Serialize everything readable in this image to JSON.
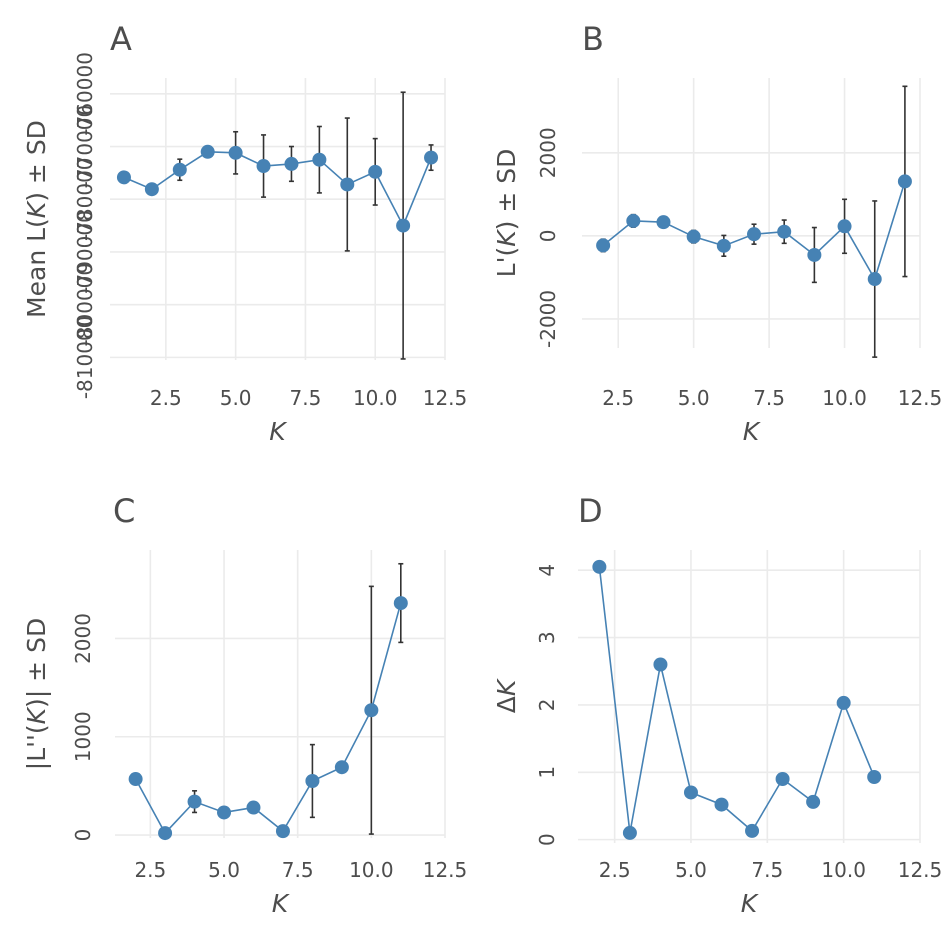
{
  "chart_data": [
    {
      "panel_tag": "A",
      "type": "line",
      "xlabel": "K",
      "ylabel": "Mean L(K) ± SD",
      "xlim": [
        0.5,
        12.5
      ],
      "ylim": [
        -810500,
        -757000
      ],
      "x_ticks": [
        2.5,
        5.0,
        7.5,
        10.0,
        12.5
      ],
      "y_ticks": [
        -810000,
        -800000,
        -790000,
        -780000,
        -770000,
        -760000
      ],
      "x_tick_labels": [
        "2.5",
        "5.0",
        "7.5",
        "10.0",
        "12.5"
      ],
      "y_tick_labels": [
        "-810000",
        "-800000",
        "-790000",
        "-780000",
        "-770000",
        "-760000"
      ],
      "grid": true,
      "x": [
        1,
        2,
        3,
        4,
        5,
        6,
        7,
        8,
        9,
        10,
        11,
        12
      ],
      "y": [
        -775850,
        -778100,
        -774400,
        -771000,
        -771200,
        -773700,
        -773300,
        -772500,
        -777200,
        -774800,
        -785000,
        -772100
      ],
      "err": [
        250,
        400,
        2000,
        800,
        4000,
        5900,
        3300,
        6300,
        12600,
        6300,
        25300,
        2400
      ]
    },
    {
      "panel_tag": "B",
      "type": "line",
      "xlabel": "K",
      "ylabel": "L'(K) ± SD",
      "xlim": [
        1.3,
        12.5
      ],
      "ylim": [
        -2700,
        3800
      ],
      "x_ticks": [
        2.5,
        5.0,
        7.5,
        10.0,
        12.5
      ],
      "y_ticks": [
        -2000,
        0,
        2000
      ],
      "x_tick_labels": [
        "2.5",
        "5.0",
        "7.5",
        "10.0",
        "12.5"
      ],
      "y_tick_labels": [
        "-2000",
        "0",
        "2000"
      ],
      "grid": true,
      "x": [
        2,
        3,
        4,
        5,
        6,
        7,
        8,
        9,
        10,
        11,
        12
      ],
      "y": [
        -230,
        360,
        330,
        -20,
        -240,
        40,
        100,
        -460,
        230,
        -1040,
        1310
      ],
      "err": [
        150,
        150,
        120,
        150,
        250,
        240,
        280,
        660,
        650,
        1880,
        2290
      ]
    },
    {
      "panel_tag": "C",
      "type": "line",
      "xlabel": "K",
      "ylabel": "|L''(K)| ± SD",
      "xlim": [
        1.3,
        12.5
      ],
      "ylim": [
        -30,
        2900
      ],
      "x_ticks": [
        2.5,
        5.0,
        7.5,
        10.0,
        12.5
      ],
      "y_ticks": [
        0,
        1000,
        2000
      ],
      "x_tick_labels": [
        "2.5",
        "5.0",
        "7.5",
        "10.0",
        "12.5"
      ],
      "y_tick_labels": [
        "0",
        "1000",
        "2000"
      ],
      "grid": true,
      "x": [
        2,
        3,
        4,
        5,
        6,
        7,
        8,
        9,
        10,
        11
      ],
      "y": [
        570,
        20,
        340,
        230,
        280,
        40,
        550,
        690,
        1270,
        2360
      ],
      "err": [
        30,
        10,
        110,
        40,
        20,
        20,
        370,
        20,
        1260,
        400
      ]
    },
    {
      "panel_tag": "D",
      "type": "line",
      "xlabel": "K",
      "ylabel": "ΔK",
      "xlim": [
        1.3,
        12.5
      ],
      "ylim": [
        -0.05,
        4.3
      ],
      "x_ticks": [
        2.5,
        5.0,
        7.5,
        10.0,
        12.5
      ],
      "y_ticks": [
        0,
        1,
        2,
        3,
        4
      ],
      "x_tick_labels": [
        "2.5",
        "5.0",
        "7.5",
        "10.0",
        "12.5"
      ],
      "y_tick_labels": [
        "0",
        "1",
        "2",
        "3",
        "4"
      ],
      "grid": true,
      "x": [
        2,
        3,
        4,
        5,
        6,
        7,
        8,
        9,
        10,
        11
      ],
      "y": [
        4.05,
        0.1,
        2.6,
        0.7,
        0.52,
        0.13,
        0.9,
        0.56,
        2.03,
        0.93
      ],
      "err": null
    }
  ],
  "colors": {
    "series": "#4682b4",
    "errorbar": "#333333",
    "grid": "#ebebeb",
    "text": "#4d4d4d"
  }
}
